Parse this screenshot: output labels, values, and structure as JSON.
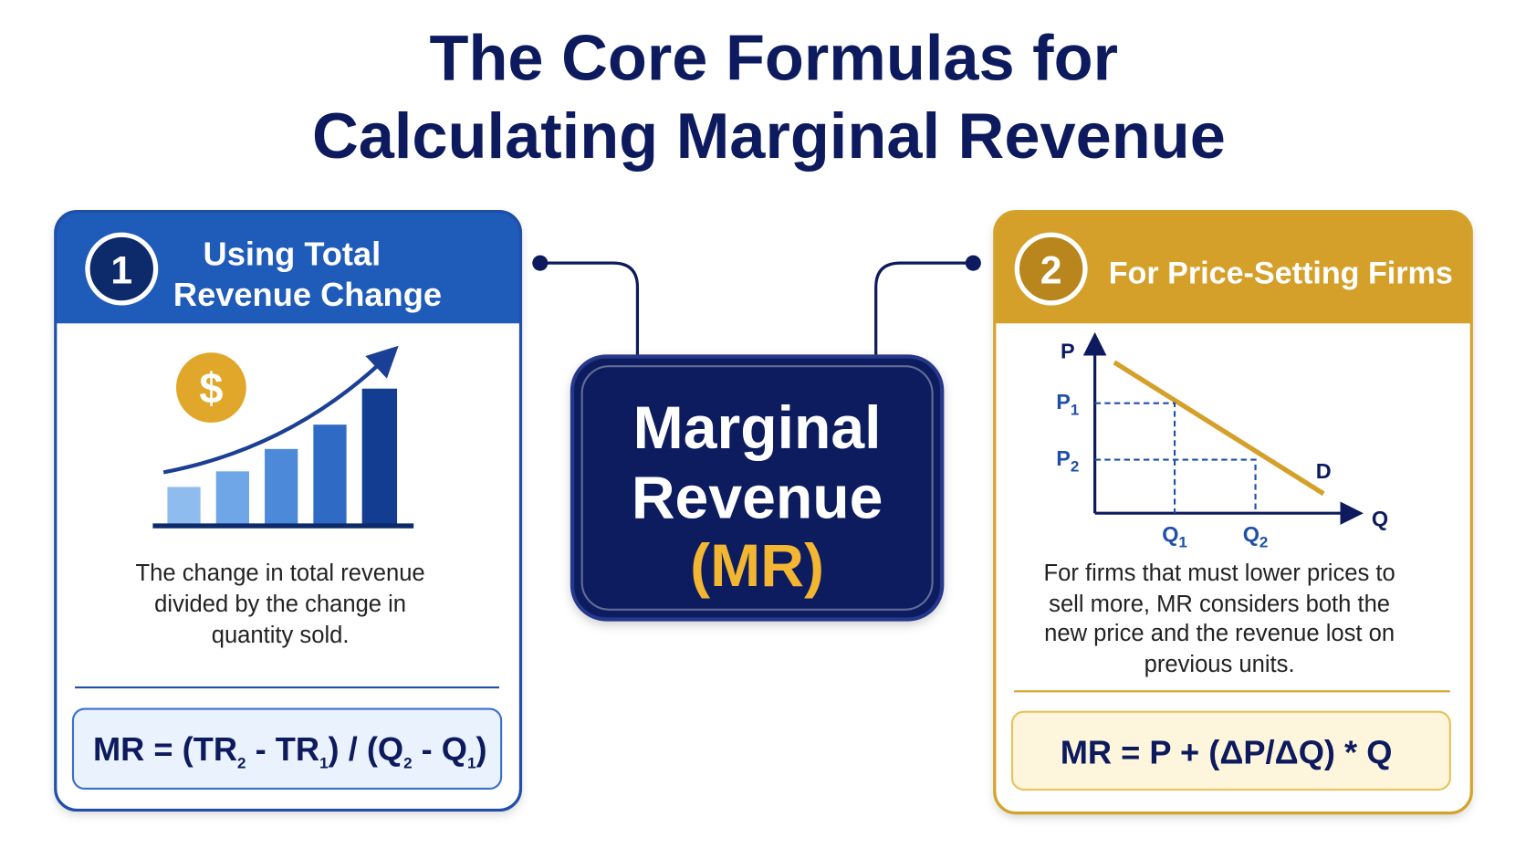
{
  "title": [
    "The Core Formulas for",
    "Calculating Marginal Revenue"
  ],
  "center": {
    "lines": [
      "Marginal",
      "Revenue"
    ],
    "abbreviation": "(MR)"
  },
  "cards": [
    {
      "number": "1",
      "heading": [
        "Using Total",
        "Revenue Change"
      ],
      "icon": "$",
      "description": [
        "The change in total revenue",
        "divided by the change in",
        "quantity sold."
      ],
      "formula": [
        "MR = (TR",
        "2",
        " - TR",
        "1",
        ") / (Q",
        "2",
        " - Q",
        "1",
        ")"
      ]
    },
    {
      "number": "2",
      "heading": [
        "For Price-Setting Firms"
      ],
      "graph": {
        "y_axis": "P",
        "x_axis": "Q",
        "curve": "D",
        "prices": [
          {
            "main": "P",
            "sub": "1"
          },
          {
            "main": "P",
            "sub": "2"
          }
        ],
        "quantities": [
          {
            "main": "Q",
            "sub": "1"
          },
          {
            "main": "Q",
            "sub": "2"
          }
        ]
      },
      "description": [
        "For firms that must lower prices to",
        "sell more, MR considers both the",
        "new price and the revenue lost on",
        "previous units."
      ],
      "formula": [
        "MR = P + (ΔP/ΔQ) * Q"
      ]
    }
  ]
}
